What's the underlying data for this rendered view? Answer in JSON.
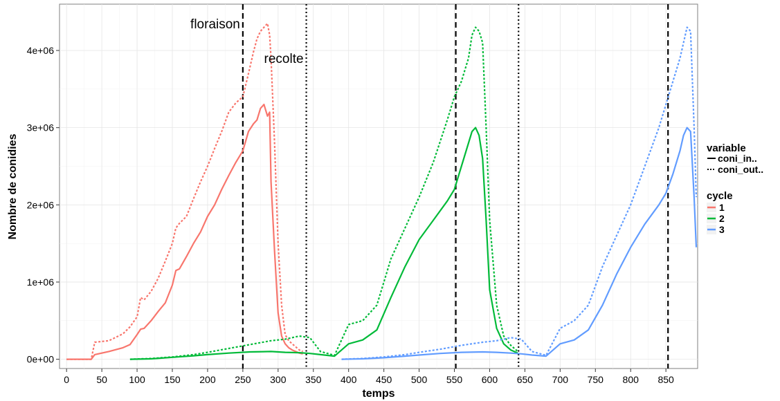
{
  "chart_data": {
    "type": "line",
    "title": "",
    "xlabel": "temps",
    "ylabel": "Nombre de conidies",
    "xlim": [
      -10,
      895
    ],
    "ylim": [
      -120000,
      4600000
    ],
    "x_ticks": [
      0,
      50,
      100,
      150,
      200,
      250,
      300,
      350,
      400,
      450,
      500,
      550,
      600,
      650,
      700,
      750,
      800,
      850
    ],
    "x_tick_labels": [
      "0",
      "50",
      "100",
      "150",
      "200",
      "250",
      "300",
      "350",
      "400",
      "450",
      "500",
      "550",
      "600",
      "650",
      "700",
      "750",
      "800",
      "850"
    ],
    "y_ticks": [
      0,
      1000000,
      2000000,
      3000000,
      4000000
    ],
    "y_tick_labels": [
      "0e+00",
      "1e+06",
      "2e+06",
      "3e+06",
      "4e+06"
    ],
    "grid": true,
    "legend_position": "right",
    "vlines": [
      {
        "x": 250,
        "style": "dashed"
      },
      {
        "x": 340,
        "style": "dotted"
      },
      {
        "x": 552,
        "style": "dashed"
      },
      {
        "x": 641,
        "style": "dotted"
      },
      {
        "x": 853,
        "style": "dashed"
      }
    ],
    "annotations": [
      {
        "text": "floraison",
        "x": 250,
        "y": 4350000,
        "anchor": "end"
      },
      {
        "text": "recolte",
        "x": 340,
        "y": 3900000,
        "anchor": "end"
      }
    ],
    "legend": {
      "variable_title": "variable",
      "variable_items": [
        {
          "label": "coni_in..",
          "style": "solid"
        },
        {
          "label": "coni_out..",
          "style": "dotted"
        }
      ],
      "cycle_title": "cycle",
      "cycle_items": [
        {
          "label": "1",
          "color": "#F8766D"
        },
        {
          "label": "2",
          "color": "#00BA38"
        },
        {
          "label": "3",
          "color": "#619CFF"
        }
      ]
    },
    "series": [
      {
        "cycle": "1",
        "variable": "coni_out..",
        "color": "#F8766D",
        "style": "dotted",
        "x": [
          0,
          35,
          40,
          60,
          80,
          90,
          100,
          105,
          110,
          120,
          130,
          140,
          150,
          155,
          160,
          170,
          180,
          190,
          200,
          210,
          220,
          230,
          240,
          250,
          258,
          265,
          270,
          275,
          280,
          285,
          288,
          290,
          295,
          300,
          305,
          310,
          315,
          320,
          325,
          330,
          335
        ],
        "y": [
          0,
          0,
          220000,
          240000,
          330000,
          420000,
          550000,
          800000,
          770000,
          880000,
          1050000,
          1270000,
          1500000,
          1700000,
          1760000,
          1850000,
          2080000,
          2300000,
          2500000,
          2730000,
          2950000,
          3200000,
          3320000,
          3400000,
          3700000,
          3980000,
          4150000,
          4250000,
          4300000,
          4350000,
          4200000,
          3900000,
          2800000,
          1500000,
          700000,
          320000,
          240000,
          200000,
          160000,
          120000,
          100000
        ]
      },
      {
        "cycle": "1",
        "variable": "coni_in..",
        "color": "#F8766D",
        "style": "solid",
        "x": [
          0,
          35,
          40,
          60,
          80,
          90,
          100,
          105,
          110,
          120,
          130,
          140,
          150,
          155,
          160,
          170,
          180,
          190,
          200,
          210,
          220,
          230,
          240,
          250,
          258,
          265,
          270,
          275,
          280,
          285,
          288,
          290,
          295,
          300,
          305,
          310,
          315,
          320,
          325,
          330,
          335
        ],
        "y": [
          0,
          0,
          60000,
          100000,
          150000,
          190000,
          320000,
          390000,
          400000,
          500000,
          620000,
          730000,
          960000,
          1150000,
          1170000,
          1330000,
          1500000,
          1650000,
          1850000,
          2000000,
          2200000,
          2380000,
          2550000,
          2700000,
          2950000,
          3050000,
          3100000,
          3250000,
          3300000,
          3150000,
          3200000,
          2300000,
          1400000,
          600000,
          300000,
          200000,
          150000,
          120000,
          100000,
          80000,
          70000
        ]
      },
      {
        "cycle": "2",
        "variable": "coni_out..",
        "color": "#00BA38",
        "style": "dotted",
        "x": [
          90,
          120,
          150,
          180,
          200,
          230,
          260,
          290,
          310,
          330,
          345,
          360,
          380,
          400,
          420,
          440,
          460,
          480,
          500,
          520,
          540,
          550,
          560,
          570,
          575,
          580,
          585,
          590,
          595,
          600,
          610,
          620,
          630,
          640
        ],
        "y": [
          0,
          10000,
          30000,
          60000,
          90000,
          140000,
          190000,
          240000,
          260000,
          300000,
          280000,
          100000,
          50000,
          450000,
          500000,
          700000,
          1300000,
          1700000,
          2100000,
          2550000,
          3100000,
          3400000,
          3600000,
          3900000,
          4200000,
          4300000,
          4250000,
          4100000,
          3000000,
          1800000,
          700000,
          300000,
          180000,
          100000
        ]
      },
      {
        "cycle": "2",
        "variable": "coni_in..",
        "color": "#00BA38",
        "style": "solid",
        "x": [
          90,
          120,
          150,
          180,
          200,
          230,
          260,
          290,
          310,
          330,
          345,
          360,
          380,
          400,
          420,
          440,
          460,
          480,
          500,
          520,
          540,
          550,
          560,
          570,
          575,
          580,
          585,
          590,
          595,
          600,
          610,
          620,
          630,
          640
        ],
        "y": [
          0,
          5000,
          25000,
          45000,
          60000,
          80000,
          95000,
          100000,
          90000,
          85000,
          75000,
          60000,
          40000,
          200000,
          250000,
          380000,
          800000,
          1200000,
          1550000,
          1800000,
          2050000,
          2200000,
          2500000,
          2800000,
          2950000,
          3000000,
          2900000,
          2600000,
          1800000,
          900000,
          400000,
          200000,
          120000,
          80000
        ]
      },
      {
        "cycle": "3",
        "variable": "coni_out..",
        "color": "#619CFF",
        "style": "dotted",
        "x": [
          390,
          420,
          450,
          480,
          500,
          530,
          560,
          590,
          610,
          630,
          645,
          660,
          680,
          700,
          720,
          740,
          760,
          780,
          800,
          820,
          840,
          850,
          860,
          870,
          875,
          880,
          885,
          890,
          893
        ],
        "y": [
          0,
          10000,
          30000,
          60000,
          90000,
          130000,
          180000,
          220000,
          240000,
          280000,
          260000,
          100000,
          50000,
          400000,
          500000,
          700000,
          1200000,
          1600000,
          2000000,
          2500000,
          3000000,
          3300000,
          3600000,
          3900000,
          4100000,
          4300000,
          4250000,
          3000000,
          2100000
        ]
      },
      {
        "cycle": "3",
        "variable": "coni_in..",
        "color": "#619CFF",
        "style": "solid",
        "x": [
          390,
          420,
          450,
          480,
          500,
          530,
          560,
          590,
          610,
          630,
          645,
          660,
          680,
          700,
          720,
          740,
          760,
          780,
          800,
          820,
          840,
          850,
          860,
          870,
          875,
          880,
          885,
          890,
          893
        ],
        "y": [
          0,
          5000,
          20000,
          40000,
          55000,
          75000,
          90000,
          95000,
          90000,
          80000,
          70000,
          55000,
          40000,
          200000,
          250000,
          380000,
          700000,
          1100000,
          1450000,
          1750000,
          2000000,
          2150000,
          2400000,
          2700000,
          2900000,
          3000000,
          2950000,
          2100000,
          1450000
        ]
      }
    ]
  }
}
